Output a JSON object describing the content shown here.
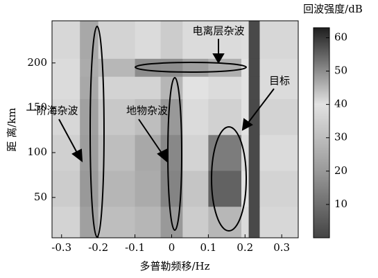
{
  "chart_data": {
    "type": "heatmap",
    "xlabel": "多普勒频移/Hz",
    "ylabel": "距 离/km",
    "colorbar_label": "回波强度/dB",
    "xlim": [
      -0.326,
      0.345
    ],
    "ylim": [
      5,
      247
    ],
    "xticks": [
      -0.3,
      -0.2,
      -0.1,
      0,
      0.1,
      0.2,
      0.3
    ],
    "yticks": [
      50,
      100,
      150,
      200
    ],
    "clim": [
      0,
      63
    ],
    "cticks": [
      10,
      20,
      30,
      40,
      50,
      60
    ],
    "colormap": [
      [
        0,
        "#444444"
      ],
      [
        20,
        "#999999"
      ],
      [
        40,
        "#e2e2e2"
      ],
      [
        63,
        "#1e1e1e"
      ]
    ],
    "xbins": [
      -0.326,
      -0.25,
      -0.2,
      -0.1,
      -0.03,
      0.03,
      0.1,
      0.19,
      0.21,
      0.24,
      0.345
    ],
    "ybins": [
      5,
      40,
      80,
      120,
      160,
      185,
      205,
      247
    ],
    "z": [
      [
        36,
        22,
        30,
        28,
        20,
        34,
        45,
        38,
        58,
        37
      ],
      [
        34,
        20,
        28,
        25,
        15,
        32,
        55,
        40,
        58,
        36
      ],
      [
        35,
        21,
        30,
        24,
        16,
        36,
        52,
        38,
        58,
        38
      ],
      [
        37,
        22,
        33,
        30,
        20,
        38,
        42,
        40,
        58,
        36
      ],
      [
        38,
        24,
        36,
        36,
        28,
        40,
        38,
        40,
        58,
        38
      ],
      [
        38,
        25,
        45,
        50,
        50,
        48,
        46,
        40,
        58,
        38
      ],
      [
        37,
        24,
        36,
        38,
        34,
        38,
        38,
        39,
        58,
        37
      ]
    ],
    "annotations": [
      "电离层杂波",
      "目标",
      "一阶海杂波",
      "地物杂波"
    ]
  }
}
